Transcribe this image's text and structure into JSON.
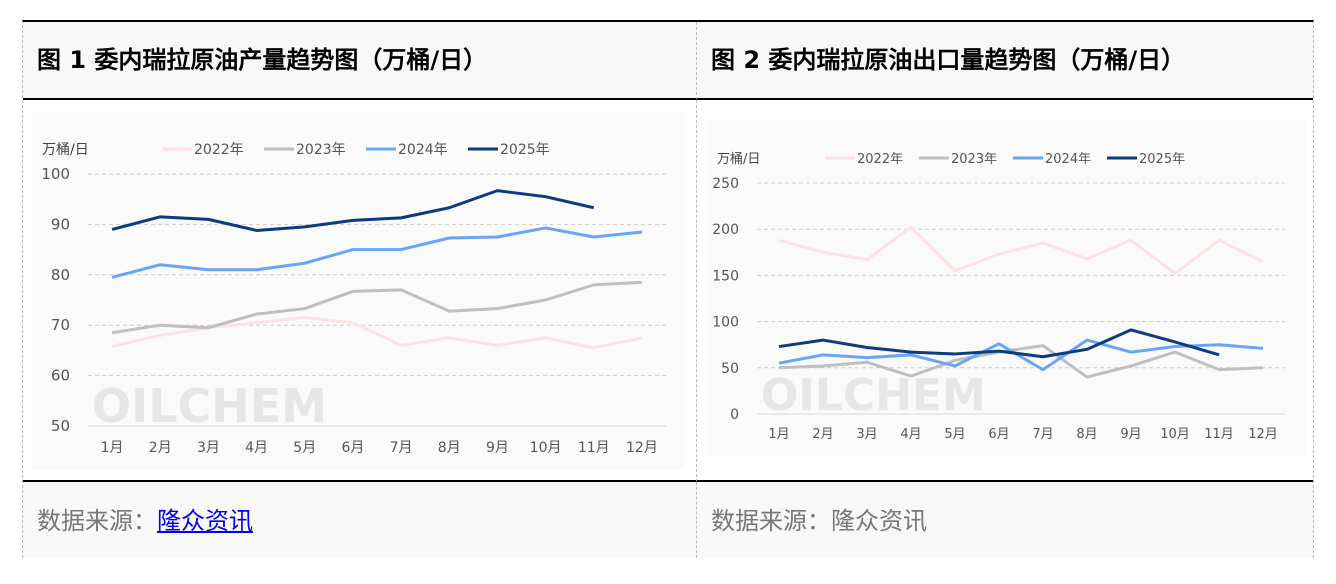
{
  "figure1": {
    "title": "图 1 委内瑞拉原油产量趋势图（万桶/日）",
    "source_label": "数据来源：",
    "source_link": "隆众资讯"
  },
  "figure2": {
    "title": "图 2 委内瑞拉原油出口量趋势图（万桶/日）",
    "source_label": "数据来源：",
    "source_text": "隆众资讯"
  },
  "watermark": "OILCHEM",
  "colors": {
    "2022年": "#fbe3e3",
    "2023年": "#bfbfbf",
    "2024年": "#6aa5f5",
    "2025年": "#0d3a80"
  },
  "chart_data": [
    {
      "type": "line",
      "ylabel": "万桶/日",
      "ylim": [
        50,
        100
      ],
      "yticks": [
        50,
        60,
        70,
        80,
        90,
        100
      ],
      "grid": true,
      "legend": "top",
      "categories": [
        "1月",
        "2月",
        "3月",
        "4月",
        "5月",
        "6月",
        "7月",
        "8月",
        "9月",
        "10月",
        "11月",
        "12月"
      ],
      "series": [
        {
          "name": "2022年",
          "values": [
            65.8,
            68,
            69.5,
            70.5,
            71.5,
            70.5,
            66,
            67.5,
            66,
            67.5,
            65.5,
            67.5
          ]
        },
        {
          "name": "2023年",
          "values": [
            68.5,
            70,
            69.5,
            72.2,
            73.3,
            76.7,
            77,
            72.8,
            73.3,
            75,
            78,
            78.5
          ]
        },
        {
          "name": "2024年",
          "values": [
            79.5,
            82,
            81,
            81,
            82.3,
            85,
            85,
            87.3,
            87.5,
            89.3,
            87.5,
            88.5
          ]
        },
        {
          "name": "2025年",
          "values": [
            89,
            91.5,
            91,
            88.8,
            89.5,
            90.8,
            91.3,
            93.3,
            96.7,
            95.5,
            93.3,
            null
          ]
        }
      ]
    },
    {
      "type": "line",
      "ylabel": "万桶/日",
      "ylim": [
        0,
        250
      ],
      "yticks": [
        0,
        50,
        100,
        150,
        200,
        250
      ],
      "grid": true,
      "legend": "top",
      "categories": [
        "1月",
        "2月",
        "3月",
        "4月",
        "5月",
        "6月",
        "7月",
        "8月",
        "9月",
        "10月",
        "11月",
        "12月"
      ],
      "series": [
        {
          "name": "2022年",
          "values": [
            188,
            175,
            167,
            202,
            155,
            173,
            185,
            168,
            188,
            152,
            188,
            165
          ]
        },
        {
          "name": "2023年",
          "values": [
            50,
            52,
            56,
            41,
            58,
            67,
            74,
            40,
            52,
            67,
            48,
            50
          ]
        },
        {
          "name": "2024年",
          "values": [
            55,
            64,
            61,
            64,
            52,
            76,
            48,
            80,
            67,
            73,
            75,
            71
          ]
        },
        {
          "name": "2025年",
          "values": [
            73,
            80,
            72,
            67,
            65,
            68,
            62,
            70,
            91,
            78,
            64,
            null
          ]
        }
      ]
    }
  ]
}
